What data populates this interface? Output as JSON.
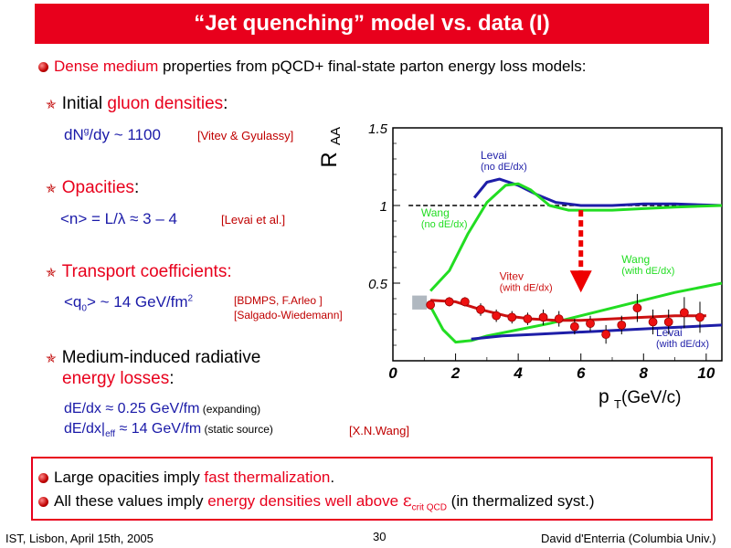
{
  "header": {
    "title": "“Jet quenching” model vs. data (I)"
  },
  "intro": {
    "highlight": "Dense medium",
    "text": " properties from pQCD+ final-state parton energy loss models:"
  },
  "sections": {
    "gluon": {
      "pre": "Initial ",
      "highlight": "gluon densities",
      "post": ":",
      "formula_a": "dN",
      "formula_sup": "g",
      "formula_b": "/dy ~ 1100",
      "ref": "[Vitev & Gyulassy]"
    },
    "opacity": {
      "heading": "Opacities",
      "post": ":",
      "formula": "<n> = L/λ  ≈ 3 – 4",
      "ref": "[Levai et al.]"
    },
    "transport": {
      "heading": "Transport coefficients:",
      "formula_a": "<q",
      "formula_sub": "0",
      "formula_b": "> ~ 14 GeV/fm",
      "formula_sup": "2",
      "ref1": "[BDMPS, F.Arleo ]",
      "ref2": "[Salgado-Wiedemann]"
    },
    "radiative": {
      "line1": "Medium-induced radiative",
      "line2_highlight": "energy losses",
      "line2_post": ":",
      "f1_main": "dE/dx ≈ 0.25 GeV/fm",
      "f1_note": " (expanding)",
      "f2_a": "dE/dx|",
      "f2_sub": "eff",
      "f2_b": " ≈ 14 GeV/fm",
      "f2_note": " (static source)",
      "ref": "[X.N.Wang]"
    }
  },
  "summary": {
    "line1_pre": "Large opacities imply ",
    "line1_highlight": "fast thermalization",
    "line1_post": ".",
    "line2_pre": "All these values imply ",
    "line2_highlight": "energy densities well above ",
    "line2_eps": "ε",
    "line2_sub": "crit QCD",
    "line2_post": " (in thermalized syst.)"
  },
  "footer": {
    "left": "IST, Lisbon, April 15th, 2005",
    "page": "30",
    "right": "David d'Enterria (Columbia Univ.)"
  },
  "chart_data": {
    "type": "line",
    "ylabel": "R",
    "ylabel_sub": "AA",
    "xlabel": "p",
    "xlabel_sub": "T",
    "xlabel_unit": " (GeV/c)",
    "xlim": [
      0,
      10.5
    ],
    "ylim": [
      0,
      1.5
    ],
    "xticks": [
      0,
      2,
      4,
      6,
      8,
      10
    ],
    "yticks": [
      0.5,
      1,
      1.5
    ],
    "ytick_labels": [
      "0.5",
      "1",
      "1.5"
    ],
    "reference_line": 1,
    "colors": {
      "green": "#22dd22",
      "blue": "#1e1ea8",
      "red": "#cc1111",
      "data": "#ee1111",
      "arrow": "#ee0000",
      "band": "#b0b8c0"
    },
    "series": [
      {
        "name": "Levai (no dE/dx)",
        "color": "#1e1ea8",
        "x": [
          2.6,
          3.0,
          3.4,
          4.0,
          4.6,
          5.2,
          6.0,
          7.0,
          8.0,
          9.0,
          10.5
        ],
        "y": [
          1.05,
          1.15,
          1.17,
          1.13,
          1.07,
          1.02,
          1.0,
          1.0,
          1.01,
          1.01,
          1.0
        ]
      },
      {
        "name": "Wang (no dE/dx)",
        "color": "#22dd22",
        "x": [
          1.2,
          1.8,
          2.4,
          3.0,
          3.6,
          4.0,
          4.4,
          5.0,
          5.6,
          6.2,
          7.0,
          8.0,
          9.0,
          10.5
        ],
        "y": [
          0.45,
          0.58,
          0.82,
          1.02,
          1.13,
          1.14,
          1.1,
          1.0,
          0.97,
          0.97,
          0.97,
          0.98,
          0.99,
          1.0
        ]
      },
      {
        "name": "Wang (with dE/dx)",
        "color": "#22dd22",
        "x": [
          1.2,
          1.6,
          2.0,
          2.5,
          3.0,
          4.0,
          5.0,
          6.0,
          7.0,
          8.0,
          9.0,
          10.5
        ],
        "y": [
          0.35,
          0.2,
          0.12,
          0.13,
          0.16,
          0.2,
          0.24,
          0.29,
          0.34,
          0.39,
          0.44,
          0.5
        ]
      },
      {
        "name": "Vitev (with dE/dx)",
        "color": "#cc1111",
        "x": [
          1.2,
          2.0,
          2.8,
          3.6,
          4.4,
          5.2,
          6.0,
          7.0,
          8.0,
          9.0,
          10.0
        ],
        "y": [
          0.39,
          0.38,
          0.33,
          0.29,
          0.27,
          0.26,
          0.26,
          0.27,
          0.28,
          0.29,
          0.29
        ]
      },
      {
        "name": "Levai (with dE/dx)",
        "color": "#1e1ea8",
        "x": [
          2.5,
          3.5,
          4.5,
          5.5,
          6.5,
          7.5,
          8.5,
          9.5,
          10.5
        ],
        "y": [
          0.14,
          0.16,
          0.17,
          0.18,
          0.19,
          0.2,
          0.21,
          0.22,
          0.23
        ]
      }
    ],
    "data_points": {
      "x": [
        1.2,
        1.8,
        2.3,
        2.8,
        3.3,
        3.8,
        4.3,
        4.8,
        5.3,
        5.8,
        6.3,
        6.8,
        7.3,
        7.8,
        8.3,
        8.8,
        9.3,
        9.8
      ],
      "y": [
        0.36,
        0.38,
        0.38,
        0.33,
        0.29,
        0.28,
        0.27,
        0.28,
        0.27,
        0.22,
        0.24,
        0.17,
        0.23,
        0.34,
        0.25,
        0.25,
        0.31,
        0.28
      ],
      "err": [
        0.03,
        0.03,
        0.03,
        0.04,
        0.04,
        0.04,
        0.04,
        0.05,
        0.05,
        0.05,
        0.05,
        0.06,
        0.06,
        0.09,
        0.08,
        0.08,
        0.1,
        0.1
      ]
    },
    "annotations": [
      {
        "text": "Levai",
        "text2": "(no dE/dx)",
        "color": "#1e1ea8",
        "x": 2.8,
        "y": 1.3
      },
      {
        "text": "Wang",
        "text2": "(no dE/dx)",
        "color": "#22dd22",
        "x": 0.9,
        "y": 0.93
      },
      {
        "text": "Wang",
        "text2": "(with dE/dx)",
        "color": "#22dd22",
        "x": 7.3,
        "y": 0.63
      },
      {
        "text": "Vitev",
        "text2": "(with dE/dx)",
        "color": "#cc1111",
        "x": 3.4,
        "y": 0.52
      },
      {
        "text": "Levai",
        "text2": "(with dE/dx)",
        "color": "#1e1ea8",
        "x": 8.4,
        "y": 0.16
      }
    ],
    "arrow": {
      "x": 6.0,
      "y_from": 0.97,
      "y_to": 0.44
    },
    "band": {
      "x": 0.85,
      "y_low": 0.33,
      "y_high": 0.42
    }
  }
}
